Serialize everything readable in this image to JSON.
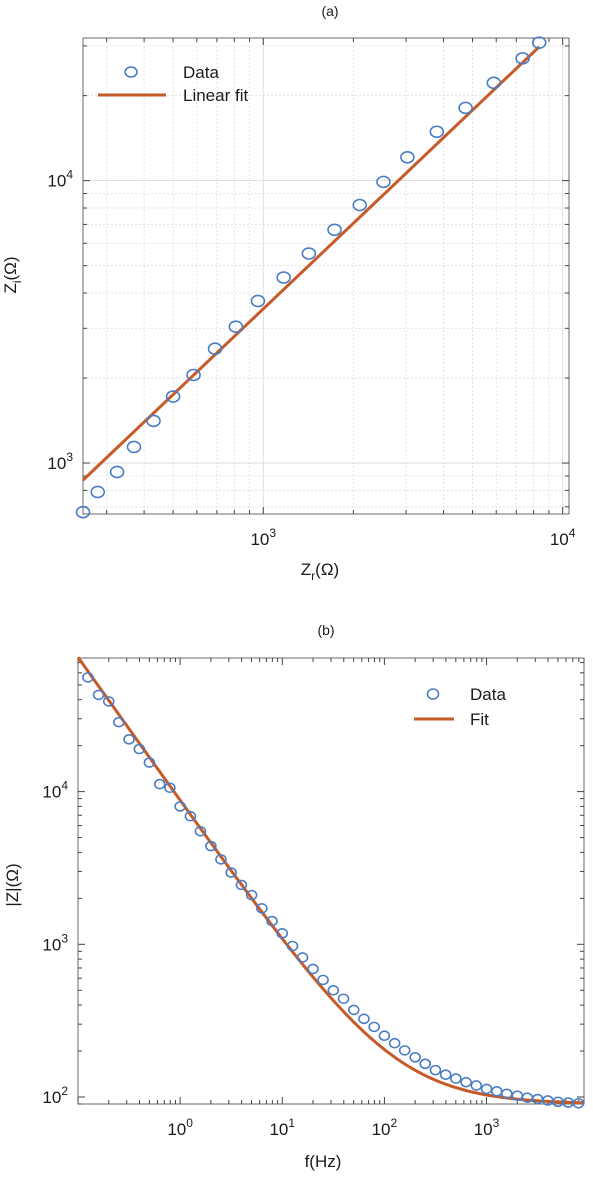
{
  "chart_data": [
    {
      "type": "scatter",
      "title": "(a)",
      "xlabel": "Z",
      "xlabel_sub": "r",
      "xlabel_unit": "(Ω)",
      "ylabel": "Z",
      "ylabel_sub": "i",
      "ylabel_unit": "(Ω)",
      "x_scale": "log",
      "y_scale": "log",
      "xlim": [
        250,
        10500
      ],
      "ylim": [
        660,
        32000
      ],
      "x_ticks": [
        {
          "value": 1000,
          "base": "10",
          "exp": "3"
        },
        {
          "value": 10000,
          "base": "10",
          "exp": "4"
        }
      ],
      "y_ticks": [
        {
          "value": 1000,
          "base": "10",
          "exp": "3"
        },
        {
          "value": 10000,
          "base": "10",
          "exp": "4"
        }
      ],
      "grid": true,
      "legend_position": "top-left",
      "series": [
        {
          "name": "Data",
          "kind": "markers",
          "color": "#4a7cc4",
          "x": [
            250,
            280,
            325,
            370,
            430,
            500,
            585,
            690,
            810,
            960,
            1170,
            1420,
            1730,
            2100,
            2520,
            3030,
            3800,
            4740,
            5890,
            7350,
            8350
          ],
          "y": [
            670,
            790,
            930,
            1140,
            1410,
            1720,
            2050,
            2540,
            3040,
            3750,
            4540,
            5520,
            6700,
            8200,
            9900,
            12100,
            14900,
            18100,
            22200,
            27100,
            30800
          ]
        },
        {
          "name": "Linear fit",
          "kind": "line",
          "color": "#c65a28",
          "x": [
            250,
            8350
          ],
          "y": [
            870,
            29800
          ]
        }
      ]
    },
    {
      "type": "scatter",
      "title": "(b)",
      "xlabel": "f(Hz)",
      "ylabel": "|Z|(Ω)",
      "x_scale": "log",
      "y_scale": "log",
      "xlim": [
        0.1,
        9000
      ],
      "ylim": [
        90,
        75000
      ],
      "x_ticks": [
        {
          "value": 1,
          "base": "10",
          "exp": "0"
        },
        {
          "value": 10,
          "base": "10",
          "exp": "1"
        },
        {
          "value": 100,
          "base": "10",
          "exp": "2"
        },
        {
          "value": 1000,
          "base": "10",
          "exp": "3"
        }
      ],
      "y_ticks": [
        {
          "value": 100,
          "base": "10",
          "exp": "2"
        },
        {
          "value": 1000,
          "base": "10",
          "exp": "3"
        },
        {
          "value": 10000,
          "base": "10",
          "exp": "4"
        }
      ],
      "grid": false,
      "legend_position": "top-right",
      "series": [
        {
          "name": "Data",
          "kind": "markers",
          "color": "#4a7cc4",
          "x": [
            0.125,
            0.159,
            0.2,
            0.251,
            0.316,
            0.398,
            0.5,
            0.631,
            0.794,
            1.0,
            1.26,
            1.58,
            2.0,
            2.51,
            3.16,
            3.98,
            5.01,
            6.31,
            7.94,
            10.0,
            12.6,
            15.8,
            20.0,
            25.1,
            31.6,
            39.8,
            50.1,
            63.1,
            79.4,
            100,
            126,
            158,
            200,
            251,
            316,
            398,
            501,
            631,
            794,
            1000,
            1260,
            1580,
            2000,
            2510,
            3160,
            3980,
            5010,
            6310,
            7940
          ],
          "y": [
            56000,
            43000,
            39000,
            28500,
            22000,
            19000,
            15500,
            11200,
            10600,
            8000,
            6900,
            5500,
            4400,
            3600,
            2950,
            2450,
            2100,
            1720,
            1420,
            1180,
            975,
            820,
            690,
            585,
            500,
            440,
            372,
            325,
            288,
            252,
            225,
            202,
            182,
            165,
            150,
            140,
            132,
            125,
            119,
            113,
            109,
            105,
            102,
            99,
            97,
            95,
            93,
            92,
            91
          ]
        },
        {
          "name": "Fit",
          "kind": "line",
          "color": "#c65a28",
          "model": {
            "r": 90,
            "k": 8700,
            "a": 0.94
          }
        }
      ]
    }
  ]
}
